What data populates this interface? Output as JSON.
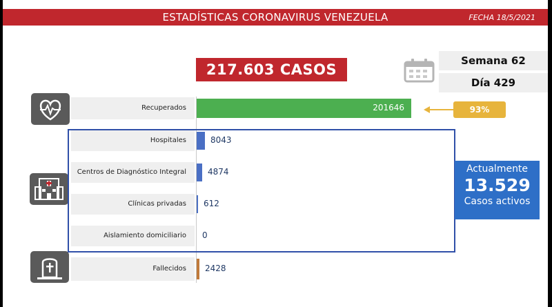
{
  "header": {
    "title": "ESTADÍSTICAS CORONAVIRUS VENEZUELA",
    "date": "FECHA 18/5/2021"
  },
  "summary": {
    "total": "217.603 CASOS",
    "week": "Semana 62",
    "day": "Día 429"
  },
  "recovered_pct": "93%",
  "active": {
    "label_top": "Actualmente",
    "value": "13.529",
    "label_bottom": "Casos activos"
  },
  "icons": {
    "calendar": "calendar-icon",
    "heart": "heart-pulse-icon",
    "hospital": "hospital-icon",
    "grave": "tombstone-icon"
  },
  "colors": {
    "header": "#c0272d",
    "recovered": "#4caf50",
    "hospital": "#4a6fc4",
    "deceased": "#c07a3a",
    "active": "#2e6fc7",
    "percent": "#e7b43c"
  },
  "chart_data": {
    "type": "bar",
    "orientation": "horizontal",
    "categories": [
      "Recuperados",
      "Hospitales",
      "Centros de Diagnóstico Integral",
      "Clínicas privadas",
      "Aislamiento domiciliario",
      "Fallecidos"
    ],
    "values": [
      201646,
      8043,
      4874,
      612,
      0,
      2428
    ],
    "value_labels": [
      "201646",
      "8043",
      "4874",
      "612",
      "0",
      "2428"
    ],
    "title": "",
    "xlabel": "",
    "ylabel": "",
    "grid": false
  }
}
